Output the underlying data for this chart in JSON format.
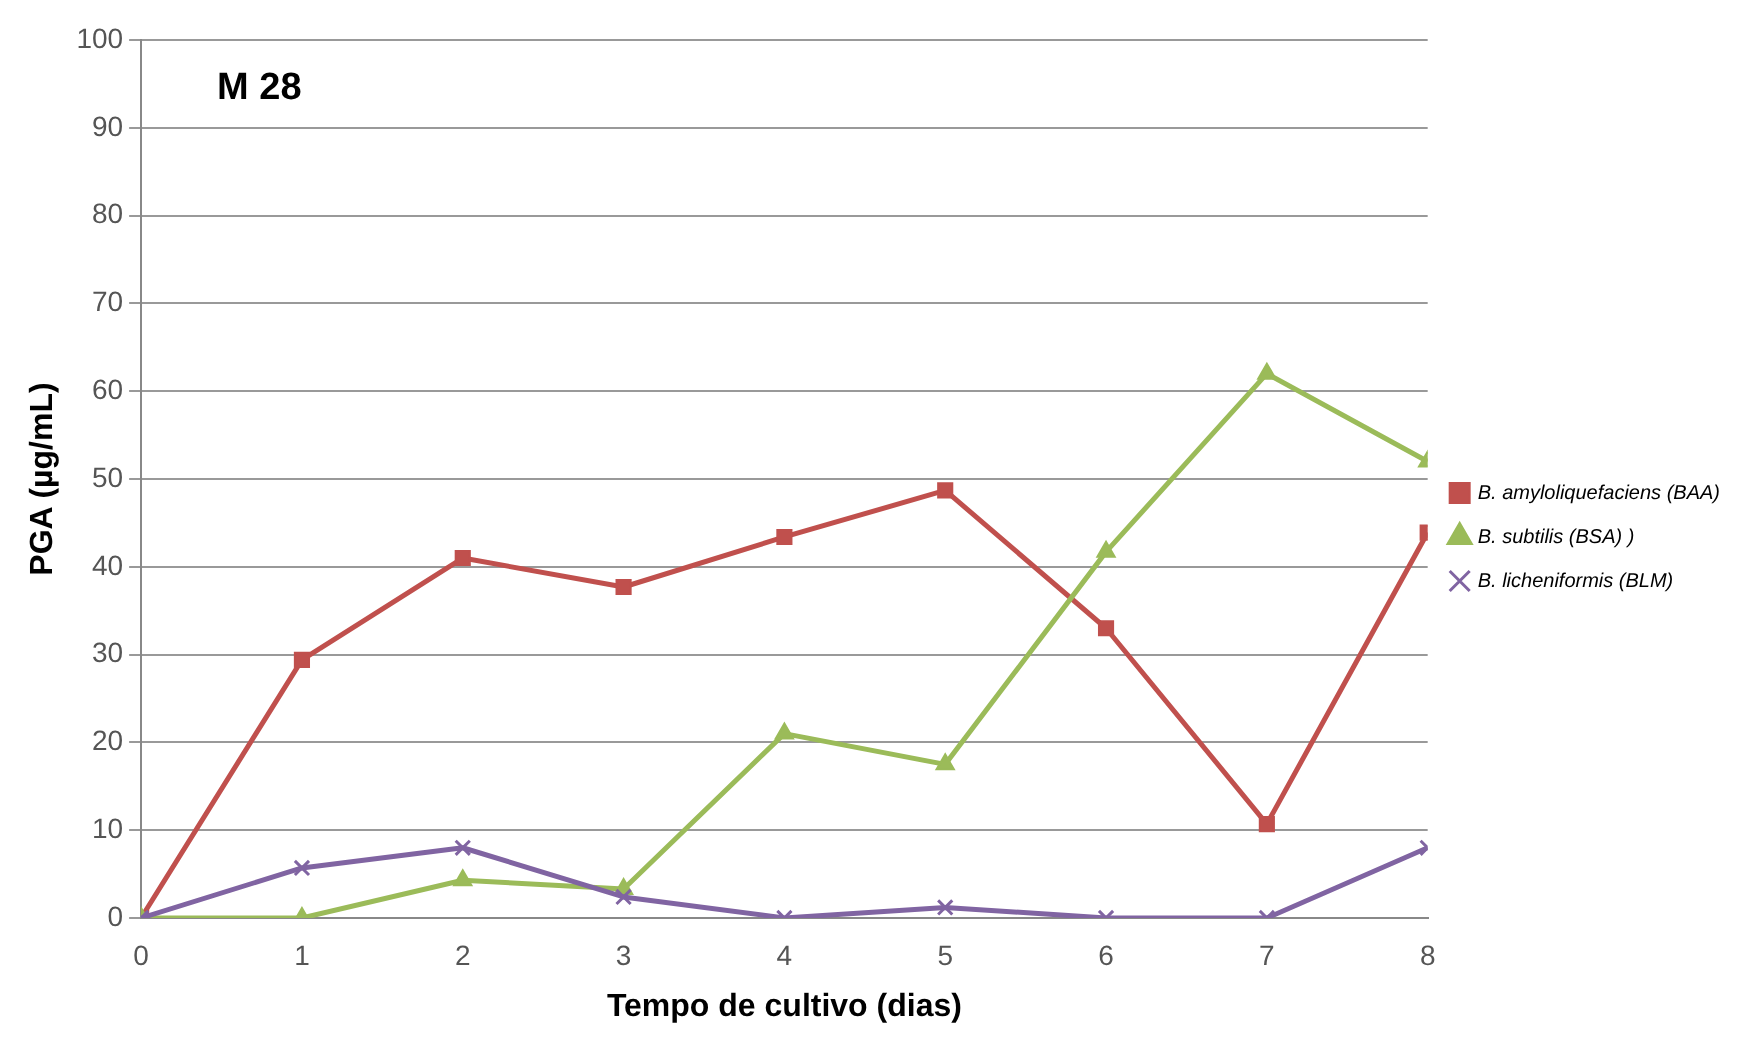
{
  "chart_data": {
    "type": "line",
    "xlabel": "Tempo de cultivo (dias)",
    "ylabel": "PGA (µg/mL)",
    "annotations": [
      "M 28"
    ],
    "x": [
      0,
      1,
      2,
      3,
      4,
      5,
      6,
      7,
      8
    ],
    "xlim": [
      0,
      8
    ],
    "xticks": [
      0,
      1,
      2,
      3,
      4,
      5,
      6,
      7,
      8
    ],
    "ylim": [
      0,
      100
    ],
    "yticks": [
      0,
      10,
      20,
      30,
      40,
      50,
      60,
      70,
      80,
      90,
      100
    ],
    "grid": "y",
    "legend": "right",
    "line_style": "solid",
    "series": [
      {
        "name": "B. amyloliquefaciens (BAA)",
        "color": "#c0504d",
        "marker": "square",
        "values": [
          0,
          29.4,
          41,
          37.7,
          43.4,
          48.7,
          33,
          10.7,
          43.9
        ]
      },
      {
        "name": "B. subtilis (BSA) )",
        "color": "#9bbb59",
        "marker": "triangle",
        "values": [
          0,
          0,
          4.3,
          3.3,
          21,
          17.5,
          41.7,
          62,
          52
        ]
      },
      {
        "name": "B. licheniformis (BLM)",
        "color": "#8064a2",
        "marker": "cross",
        "values": [
          0,
          5.7,
          8,
          2.4,
          0,
          1.2,
          0,
          0,
          8
        ]
      }
    ]
  }
}
